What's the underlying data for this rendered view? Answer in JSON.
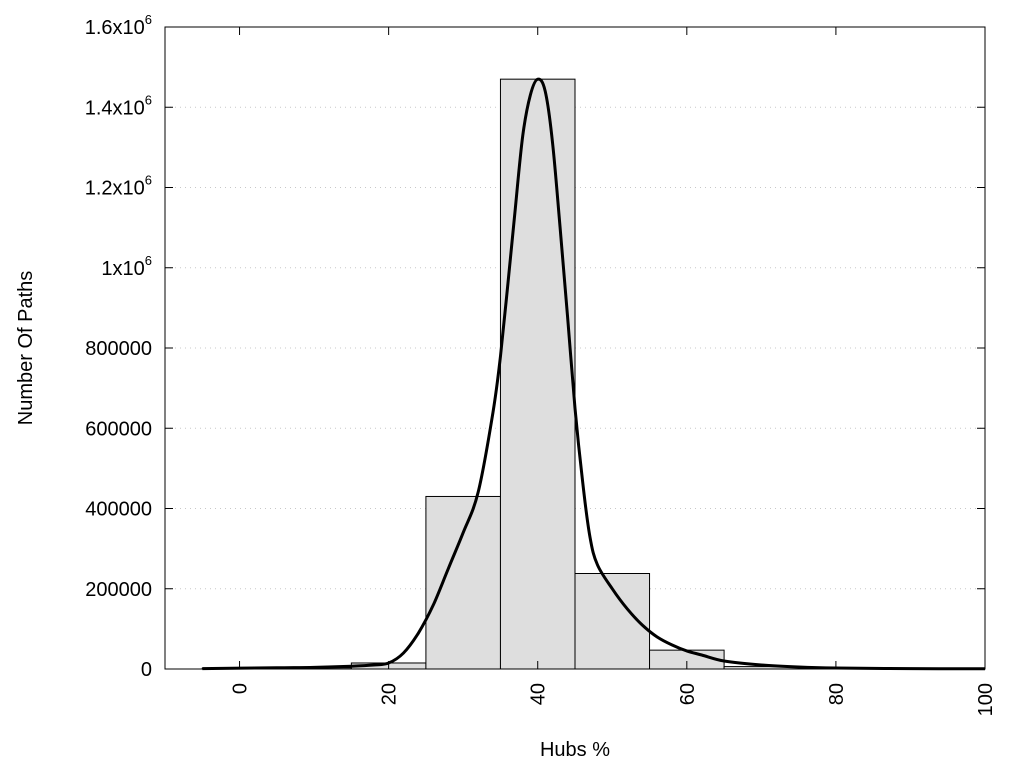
{
  "chart_data": {
    "type": "bar",
    "xlabel": "Hubs %",
    "ylabel": "Number Of Paths",
    "xlim": [
      -10,
      100
    ],
    "ylim": [
      0,
      1600000
    ],
    "grid": "horizontal-dotted",
    "x_ticks": [
      {
        "value": 0,
        "label": "0"
      },
      {
        "value": 20,
        "label": "20"
      },
      {
        "value": 40,
        "label": "40"
      },
      {
        "value": 60,
        "label": "60"
      },
      {
        "value": 80,
        "label": "80"
      },
      {
        "value": 100,
        "label": "100"
      }
    ],
    "y_ticks": [
      {
        "value": 0,
        "label": "0"
      },
      {
        "value": 200000,
        "label": "200000"
      },
      {
        "value": 400000,
        "label": "400000"
      },
      {
        "value": 600000,
        "label": "600000"
      },
      {
        "value": 800000,
        "label": "800000"
      },
      {
        "value": 1000000,
        "base": "1x10",
        "exp": "6"
      },
      {
        "value": 1200000,
        "base": "1.2x10",
        "exp": "6"
      },
      {
        "value": 1400000,
        "base": "1.4x10",
        "exp": "6"
      },
      {
        "value": 1600000,
        "base": "1.6x10",
        "exp": "6"
      }
    ],
    "bars": [
      {
        "center": 0,
        "width": 10,
        "value": 2000
      },
      {
        "center": 10,
        "width": 10,
        "value": 3000
      },
      {
        "center": 20,
        "width": 10,
        "value": 15000
      },
      {
        "center": 30,
        "width": 10,
        "value": 430000
      },
      {
        "center": 40,
        "width": 10,
        "value": 1470000
      },
      {
        "center": 50,
        "width": 10,
        "value": 238000
      },
      {
        "center": 60,
        "width": 10,
        "value": 47000
      },
      {
        "center": 70,
        "width": 10,
        "value": 6000
      },
      {
        "center": 80,
        "width": 10,
        "value": 1000
      },
      {
        "center": 90,
        "width": 10,
        "value": 300
      }
    ],
    "curve": [
      [
        -5,
        1000
      ],
      [
        5,
        3000
      ],
      [
        10,
        4000
      ],
      [
        15,
        7000
      ],
      [
        18,
        10000
      ],
      [
        20,
        15000
      ],
      [
        22,
        40000
      ],
      [
        24,
        90000
      ],
      [
        26,
        160000
      ],
      [
        28,
        250000
      ],
      [
        30,
        340000
      ],
      [
        32,
        440000
      ],
      [
        34,
        640000
      ],
      [
        35,
        780000
      ],
      [
        36,
        960000
      ],
      [
        37,
        1150000
      ],
      [
        38,
        1330000
      ],
      [
        39,
        1430000
      ],
      [
        40,
        1470000
      ],
      [
        41,
        1440000
      ],
      [
        42,
        1310000
      ],
      [
        43,
        1100000
      ],
      [
        44,
        880000
      ],
      [
        45,
        650000
      ],
      [
        46,
        470000
      ],
      [
        47,
        330000
      ],
      [
        48,
        260000
      ],
      [
        50,
        200000
      ],
      [
        52,
        150000
      ],
      [
        54,
        110000
      ],
      [
        56,
        80000
      ],
      [
        58,
        60000
      ],
      [
        60,
        45000
      ],
      [
        62,
        35000
      ],
      [
        65,
        20000
      ],
      [
        70,
        10000
      ],
      [
        75,
        5000
      ],
      [
        80,
        2500
      ],
      [
        90,
        1000
      ],
      [
        100,
        500
      ]
    ]
  }
}
